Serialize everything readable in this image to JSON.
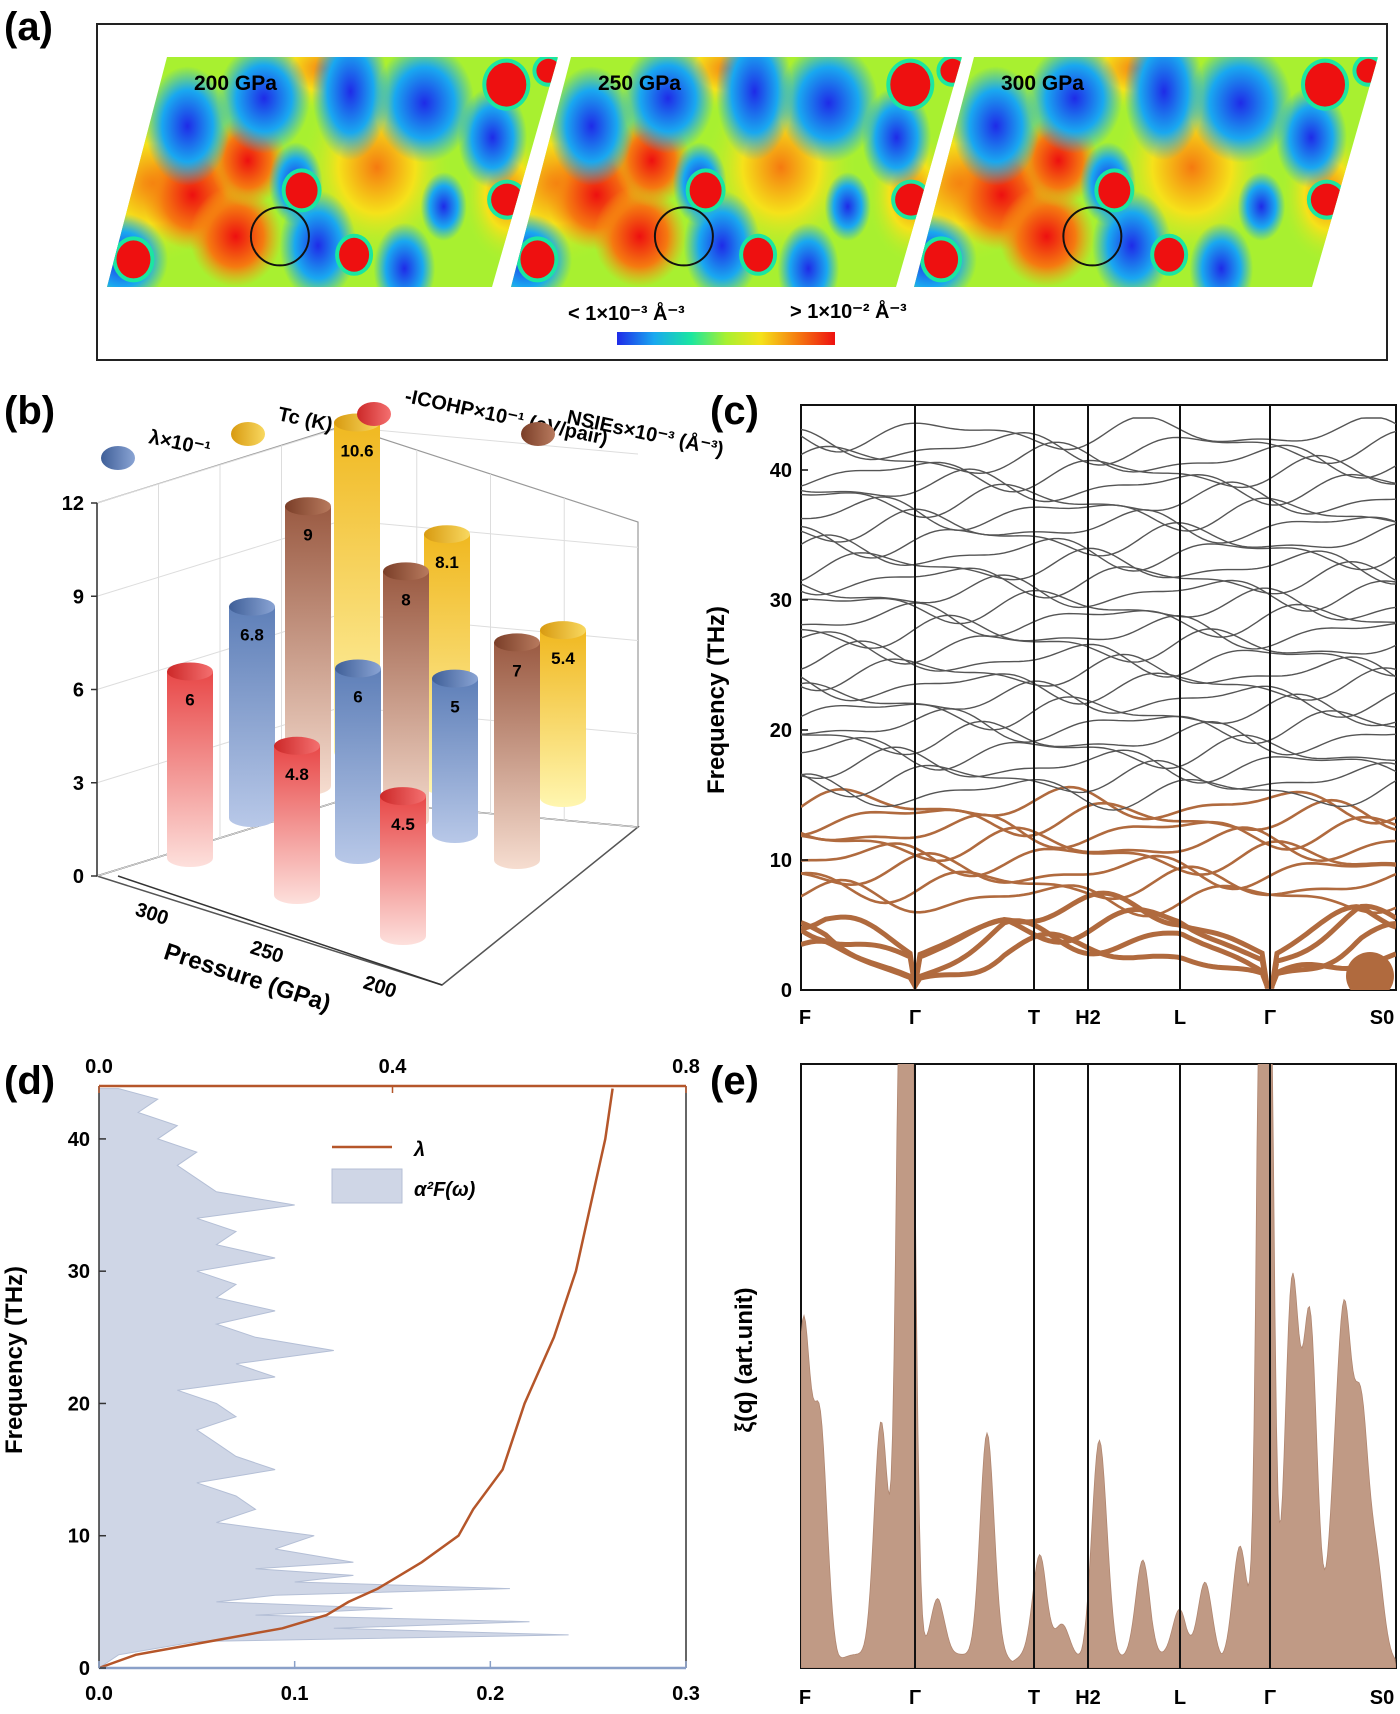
{
  "panel_labels": {
    "a": "(a)",
    "b": "(b)",
    "c": "(c)",
    "d": "(d)",
    "e": "(e)"
  },
  "panel_a": {
    "pressures": [
      "200 GPa",
      "250 GPa",
      "300 GPa"
    ],
    "colorbar_low": "< 1×10⁻³ Å⁻³",
    "colorbar_high": "> 1×10⁻² Å⁻³",
    "colormap": [
      "#1f2be8",
      "#19a8f0",
      "#1be6a0",
      "#a8f030",
      "#f5e21a",
      "#f57a10",
      "#ee1010"
    ]
  },
  "chart_data": [
    {
      "id": "b",
      "type": "bar",
      "categories": [
        "300",
        "250",
        "200"
      ],
      "xlabel": "Pressure (GPa)",
      "zlim": [
        0,
        12
      ],
      "zticks": [
        "0",
        "3",
        "6",
        "9",
        "12"
      ],
      "series": [
        {
          "name": "λ×10⁻¹",
          "color": "#6e8fc4",
          "values": [
            6.8,
            6.0,
            5.0
          ]
        },
        {
          "name": "Tc (K)",
          "color": "#f2c63c",
          "values": [
            10.6,
            8.1,
            5.4
          ]
        },
        {
          "name": "-ICOHP×10⁻¹ (eV/pair)",
          "color": "#ee6060",
          "values": [
            6.0,
            4.8,
            4.5
          ]
        },
        {
          "name": "NSIEs×10⁻³ (Å⁻³)",
          "color": "#a8664a",
          "values": [
            9.0,
            8.0,
            7.0
          ]
        }
      ],
      "value_labels": [
        [
          "6.8",
          "6",
          "5"
        ],
        [
          "10.6",
          "8.1",
          "5.4"
        ],
        [
          "6",
          "4.8",
          "4.5"
        ],
        [
          "9",
          "8",
          "7"
        ]
      ]
    },
    {
      "id": "c",
      "type": "line",
      "ylabel": "Frequency (THz)",
      "ylim": [
        0,
        45
      ],
      "yticks": [
        "0",
        "10",
        "20",
        "30",
        "40"
      ],
      "kpoints": [
        "F",
        "Γ",
        "T",
        "H2",
        "L",
        "Γ",
        "S0"
      ],
      "band_color": "#555555",
      "fatband_color": "#b06a3e"
    },
    {
      "id": "d",
      "type": "area",
      "ylabel": "Frequency (THz)",
      "ylim": [
        0,
        44
      ],
      "yticks": [
        "0",
        "10",
        "20",
        "30",
        "40"
      ],
      "bottom_xlim": [
        0.0,
        0.3
      ],
      "bottom_xticks": [
        "0.0",
        "0.1",
        "0.2",
        "0.3"
      ],
      "top_xlim": [
        0.0,
        0.8
      ],
      "top_xticks": [
        "0.0",
        "0.4",
        "0.8"
      ],
      "legend": [
        "λ",
        "α²F(ω)"
      ],
      "a2F": {
        "freq": [
          0,
          1,
          2,
          2.5,
          3,
          3.5,
          4,
          4.5,
          5,
          5.5,
          6,
          6.5,
          7,
          7.5,
          8,
          9,
          10,
          11,
          12,
          13,
          14,
          15,
          16,
          17,
          18,
          19,
          20,
          21,
          22,
          23,
          24,
          25,
          26,
          27,
          28,
          29,
          30,
          31,
          32,
          33,
          34,
          35,
          36,
          37,
          38,
          39,
          40,
          41,
          42,
          43,
          43.8
        ],
        "value": [
          0,
          0.01,
          0.05,
          0.24,
          0.12,
          0.22,
          0.08,
          0.15,
          0.06,
          0.09,
          0.21,
          0.1,
          0.13,
          0.08,
          0.13,
          0.09,
          0.11,
          0.06,
          0.08,
          0.07,
          0.05,
          0.09,
          0.07,
          0.06,
          0.05,
          0.07,
          0.06,
          0.04,
          0.09,
          0.07,
          0.12,
          0.08,
          0.06,
          0.09,
          0.06,
          0.07,
          0.05,
          0.09,
          0.06,
          0.07,
          0.05,
          0.1,
          0.06,
          0.05,
          0.04,
          0.05,
          0.03,
          0.04,
          0.02,
          0.03,
          0.01
        ]
      },
      "lambda": {
        "freq": [
          0,
          1,
          2,
          3,
          4,
          5,
          6,
          7,
          8,
          10,
          12,
          15,
          20,
          25,
          30,
          35,
          40,
          43.8
        ],
        "value": [
          0.0,
          0.05,
          0.15,
          0.25,
          0.31,
          0.34,
          0.38,
          0.41,
          0.44,
          0.49,
          0.51,
          0.55,
          0.58,
          0.62,
          0.65,
          0.67,
          0.69,
          0.7
        ]
      }
    },
    {
      "id": "e",
      "type": "area",
      "ylabel": "ξ(q) (art.unit)",
      "kpoints": [
        "F",
        "Γ",
        "T",
        "H2",
        "L",
        "Γ",
        "S0"
      ],
      "color": "#c09a85"
    }
  ]
}
